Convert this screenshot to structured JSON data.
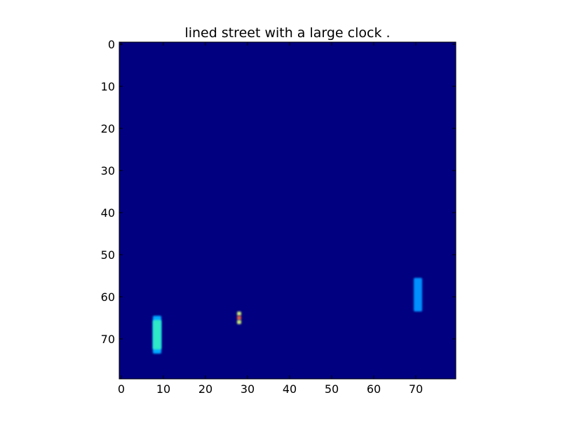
{
  "chart_data": {
    "type": "heatmap",
    "title": "lined street with a large clock .",
    "xlabel": "",
    "ylabel": "",
    "grid_size": [
      80,
      80
    ],
    "xlim": [
      -0.5,
      79.5
    ],
    "ylim": [
      79.5,
      -0.5
    ],
    "x_ticks": [
      0,
      10,
      20,
      30,
      40,
      50,
      60,
      70
    ],
    "y_ticks": [
      0,
      10,
      20,
      30,
      40,
      50,
      60,
      70
    ],
    "grid": false,
    "colormap": "jet",
    "background_color": "#000080",
    "blobs": [
      {
        "x": [
          8,
          9
        ],
        "y": [
          65,
          73
        ],
        "level": 0.45,
        "color": "#00a8ff"
      },
      {
        "x": [
          8,
          9
        ],
        "y": [
          66,
          72
        ],
        "level": 0.55,
        "color": "#2ee8c8"
      },
      {
        "x": [
          70,
          71
        ],
        "y": [
          56,
          63
        ],
        "level": 0.38,
        "color": "#0090ff"
      },
      {
        "x": [
          28,
          28
        ],
        "y": [
          64,
          64
        ],
        "level": 0.6,
        "color": "#c8e878"
      },
      {
        "x": [
          28,
          28
        ],
        "y": [
          65,
          65
        ],
        "level": 0.85,
        "color": "#e06040"
      },
      {
        "x": [
          28,
          28
        ],
        "y": [
          66,
          66
        ],
        "level": 0.6,
        "color": "#c8e878"
      }
    ]
  }
}
